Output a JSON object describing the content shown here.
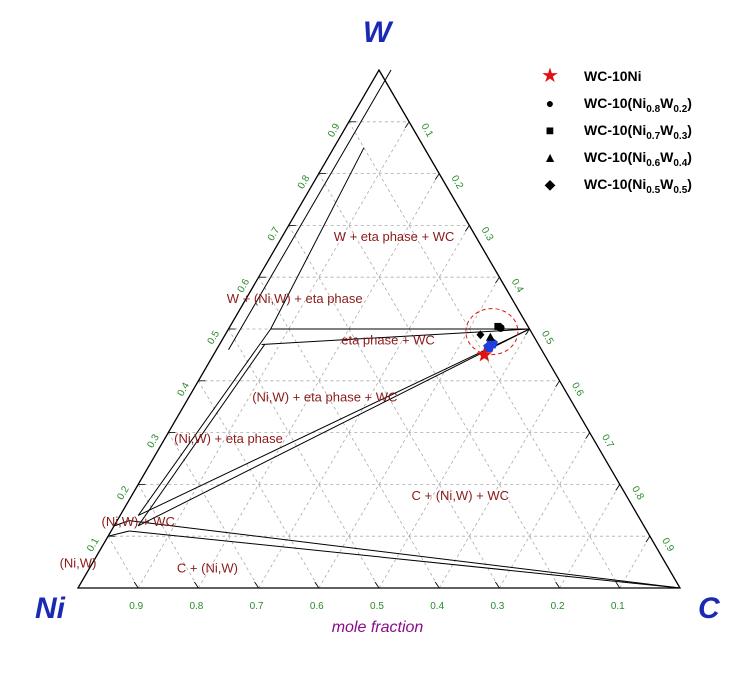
{
  "chart_data": {
    "type": "ternary",
    "corners": {
      "top": "W",
      "left": "Ni",
      "right": "C"
    },
    "axis_title": "mole fraction",
    "ticks": [
      "0.1",
      "0.2",
      "0.3",
      "0.4",
      "0.5",
      "0.6",
      "0.7",
      "0.8",
      "0.9"
    ],
    "tick_values": [
      0.1,
      0.2,
      0.3,
      0.4,
      0.5,
      0.6,
      0.7,
      0.8,
      0.9
    ],
    "grid": true,
    "phase_regions": [
      {
        "name": "W + eta phase + WC",
        "C": 0.19,
        "W": 0.67
      },
      {
        "name": "W + (Ni,W) + eta phase",
        "C": 0.085,
        "W": 0.55
      },
      {
        "name": "eta phase + WC",
        "C": 0.28,
        "W": 0.47
      },
      {
        "name": "(Ni,W) + eta phase + WC",
        "C": 0.23,
        "W": 0.36
      },
      {
        "name": "(Ni,W) + eta phase",
        "C": 0.11,
        "W": 0.28
      },
      {
        "name": "C + (Ni,W) + WC",
        "C": 0.55,
        "W": 0.17
      },
      {
        "name": "(Ni,W) + WC",
        "C": 0.04,
        "W": 0.12
      },
      {
        "name": "(Ni,W)",
        "C": -0.02,
        "W": 0.04
      },
      {
        "name": "C + (Ni,W)",
        "C": 0.2,
        "W": 0.03
      }
    ],
    "boundaries": [
      {
        "C": [
          0,
          0.5
        ],
        "W": [
          1,
          0.5
        ]
      },
      {
        "C": [
          0.02,
          0.02
        ],
        "W": [
          1,
          0.46
        ]
      },
      {
        "C": [
          0.05,
          0.07
        ],
        "W": [
          0.85,
          0.5
        ]
      },
      {
        "C": [
          0.07,
          0.5
        ],
        "W": [
          0.5,
          0.5
        ]
      },
      {
        "C": [
          0.07,
          0.5
        ],
        "W": [
          0.47,
          0.5
        ]
      },
      {
        "C": [
          0.07,
          0.03
        ],
        "W": [
          0.5,
          0.14
        ]
      },
      {
        "C": [
          0.075,
          0.04
        ],
        "W": [
          0.47,
          0.12
        ]
      },
      {
        "C": [
          0.03,
          0.5
        ],
        "W": [
          0.14,
          0.5
        ]
      },
      {
        "C": [
          0.04,
          0.5
        ],
        "W": [
          0.12,
          0.5
        ]
      },
      {
        "C": [
          0.03,
          1.0
        ],
        "W": [
          0.11,
          0.0
        ]
      },
      {
        "C": [
          0.02,
          1.0
        ],
        "W": [
          0.13,
          0.0
        ]
      },
      {
        "C": [
          0.0,
          0.02
        ],
        "W": [
          0.12,
          0.13
        ]
      },
      {
        "C": [
          0.0,
          0.03
        ],
        "W": [
          0.1,
          0.11
        ]
      }
    ],
    "series": [
      {
        "name": "WC-10Ni",
        "marker": "star",
        "color": "#e01212",
        "C": 0.45,
        "W": 0.45
      },
      {
        "name": "WC-10(Ni0.8W0.2)",
        "marker": "circle",
        "color": "#000000",
        "C": 0.451,
        "W": 0.502
      },
      {
        "name": "WC-10(Ni0.7W0.3)",
        "marker": "square",
        "color": "#000000",
        "C": 0.445,
        "W": 0.505
      },
      {
        "name": "WC-10(Ni0.6W0.4)",
        "marker": "triangle",
        "color": "#000000",
        "C": 0.443,
        "W": 0.484
      },
      {
        "name": "WC-10(Ni0.5W0.5)",
        "marker": "diamond",
        "color": "#000000",
        "C": 0.424,
        "W": 0.489
      }
    ],
    "highlight_points": [
      {
        "marker": "pentagon",
        "color": "#1f3ee0",
        "C": 0.45,
        "W": 0.465
      },
      {
        "marker": "pentagon",
        "color": "#1f3ee0",
        "C": 0.452,
        "W": 0.472
      }
    ],
    "highlight_circle": {
      "C": 0.44,
      "W": 0.495,
      "color": "#e01212"
    },
    "colors": {
      "region_label": "#8b1a1a",
      "tick_label": "#2a8a2a",
      "corner_label": "#1a2ab4",
      "axis_title": "#8a0a8a",
      "grid": "#aaaaaa",
      "boundary": "#000000"
    }
  },
  "legend": {
    "items": [
      {
        "symbol": "star-icon",
        "label_html": "WC-10Ni"
      },
      {
        "symbol": "circle-icon",
        "label_html": "WC-10(Ni<sub>0.8</sub>W<sub>0.2</sub>)"
      },
      {
        "symbol": "square-icon",
        "label_html": "WC-10(Ni<sub>0.7</sub>W<sub>0.3</sub>)"
      },
      {
        "symbol": "triangle-icon",
        "label_html": "WC-10(Ni<sub>0.6</sub>W<sub>0.4</sub>)"
      },
      {
        "symbol": "diamond-icon",
        "label_html": "WC-10(Ni<sub>0.5</sub>W<sub>0.5</sub>)"
      }
    ]
  }
}
